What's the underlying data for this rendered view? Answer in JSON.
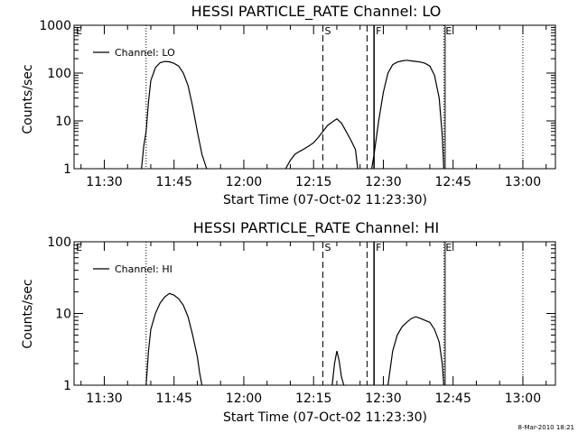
{
  "chart_data": [
    {
      "type": "line",
      "title": "HESSI PARTICLE_RATE Channel: LO",
      "xlabel": "Start Time (07-Oct-02 11:23:30)",
      "ylabel": "Counts/sec",
      "y_scale": "log",
      "ylim": [
        1,
        1000
      ],
      "xlim": [
        "11:23:30",
        "13:07"
      ],
      "x_ticks": [
        "11:30",
        "11:45",
        "12:00",
        "12:15",
        "12:30",
        "12:45",
        "13:00"
      ],
      "y_ticks": [
        "1",
        "10",
        "100",
        "1000"
      ],
      "legend": {
        "position": "top-left",
        "entries": [
          "Channel: LO"
        ]
      },
      "markers": [
        {
          "label": "E",
          "x": "11:23:30",
          "style": "none"
        },
        {
          "label": "",
          "x": "11:39:00",
          "style": "dotted"
        },
        {
          "label": "S",
          "x": "12:17:00",
          "style": "dashed"
        },
        {
          "label": "",
          "x": "12:26:30",
          "style": "dashed"
        },
        {
          "label": "F",
          "x": "12:28:00",
          "style": "solid"
        },
        {
          "label": "E",
          "x": "12:43:00",
          "style": "dotted-solid"
        },
        {
          "label": "",
          "x": "13:00:00",
          "style": "dotted"
        }
      ],
      "series": [
        {
          "segments": [
            {
              "x": [
                "11:38:00",
                "11:38:30",
                "11:39:00",
                "11:39:30",
                "11:40:00",
                "11:41:00",
                "11:42:00",
                "11:43:00",
                "11:44:00",
                "11:45:00",
                "11:46:00",
                "11:47:00",
                "11:48:00",
                "11:49:00",
                "11:50:00",
                "11:51:00",
                "11:52:00"
              ],
              "y": [
                1,
                3,
                6,
                25,
                70,
                130,
                165,
                175,
                172,
                160,
                140,
                100,
                55,
                20,
                6,
                2,
                1
              ]
            },
            {
              "x": [
                "12:09:00",
                "12:10:00",
                "12:11:00",
                "12:12:00",
                "12:13:00",
                "12:14:00",
                "12:15:00",
                "12:16:00",
                "12:17:00",
                "12:18:00",
                "12:19:00",
                "12:20:00",
                "12:21:00",
                "12:22:00",
                "12:23:00",
                "12:24:00",
                "12:24:30"
              ],
              "y": [
                1,
                1.5,
                2,
                2.3,
                2.6,
                3,
                3.5,
                4.5,
                6,
                8,
                9.5,
                11,
                9,
                6,
                4,
                2.5,
                1
              ]
            },
            {
              "x": [
                "12:27:30",
                "12:28:00",
                "12:29:00",
                "12:30:00",
                "12:31:00",
                "12:32:00",
                "12:33:00",
                "12:34:00",
                "12:35:00",
                "12:36:00",
                "12:37:00",
                "12:38:00",
                "12:39:00",
                "12:40:00",
                "12:41:00",
                "12:42:00",
                "12:42:40",
                "12:43:00"
              ],
              "y": [
                1,
                2,
                10,
                40,
                100,
                150,
                170,
                180,
                185,
                180,
                175,
                170,
                160,
                140,
                90,
                30,
                5,
                1
              ]
            }
          ]
        }
      ]
    },
    {
      "type": "line",
      "title": "HESSI PARTICLE_RATE Channel: HI",
      "xlabel": "Start Time (07-Oct-02 11:23:30)",
      "ylabel": "Counts/sec",
      "y_scale": "log",
      "ylim": [
        1,
        100
      ],
      "xlim": [
        "11:23:30",
        "13:07"
      ],
      "x_ticks": [
        "11:30",
        "11:45",
        "12:00",
        "12:15",
        "12:30",
        "12:45",
        "13:00"
      ],
      "y_ticks": [
        "1",
        "10",
        "100"
      ],
      "legend": {
        "position": "top-left",
        "entries": [
          "Channel: HI"
        ]
      },
      "markers": [
        {
          "label": "E",
          "x": "11:23:30",
          "style": "none"
        },
        {
          "label": "",
          "x": "11:39:00",
          "style": "dotted"
        },
        {
          "label": "S",
          "x": "12:17:00",
          "style": "dashed"
        },
        {
          "label": "",
          "x": "12:26:30",
          "style": "dashed"
        },
        {
          "label": "F",
          "x": "12:28:00",
          "style": "solid"
        },
        {
          "label": "E",
          "x": "12:43:00",
          "style": "dotted-solid"
        },
        {
          "label": "",
          "x": "13:00:00",
          "style": "dotted"
        }
      ],
      "series": [
        {
          "segments": [
            {
              "x": [
                "11:39:00",
                "11:39:30",
                "11:40:00",
                "11:41:00",
                "11:42:00",
                "11:43:00",
                "11:44:00",
                "11:45:00",
                "11:46:00",
                "11:47:00",
                "11:48:00",
                "11:49:00",
                "11:50:00",
                "11:50:30",
                "11:51:00"
              ],
              "y": [
                1,
                3,
                6,
                10,
                14,
                17,
                19,
                18,
                16,
                13,
                9,
                5,
                2.5,
                1.5,
                1
              ]
            },
            {
              "x": [
                "12:19:00",
                "12:19:30",
                "12:20:00",
                "12:20:30",
                "12:21:00",
                "12:21:30"
              ],
              "y": [
                1,
                2,
                3,
                2.2,
                1.3,
                1
              ]
            },
            {
              "x": [
                "12:31:00",
                "12:32:00",
                "12:33:00",
                "12:34:00",
                "12:35:00",
                "12:36:00",
                "12:37:00",
                "12:38:00",
                "12:39:00",
                "12:40:00",
                "12:41:00",
                "12:42:00",
                "12:42:40",
                "12:43:00"
              ],
              "y": [
                1,
                3,
                5,
                6.5,
                7.5,
                8.5,
                9,
                8.5,
                8,
                7.5,
                6,
                4,
                2,
                1
              ]
            }
          ]
        }
      ]
    }
  ],
  "timestamp": "8-Mar-2010 18:21"
}
